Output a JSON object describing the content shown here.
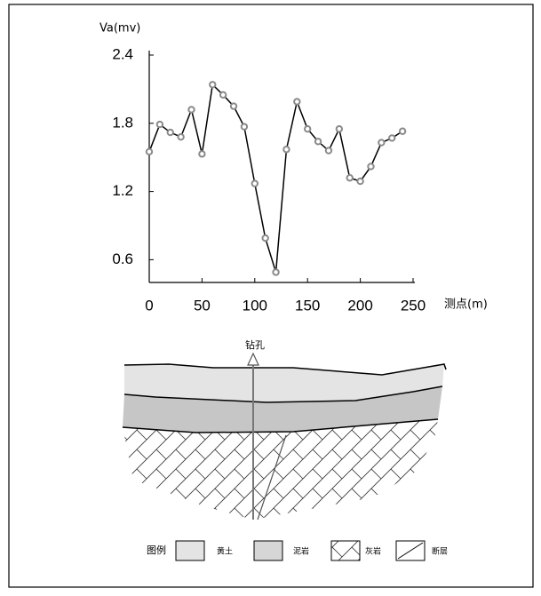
{
  "chart_data": {
    "type": "line",
    "y_label": "Va(mv)",
    "x_label": "测点(m)",
    "x": [
      0,
      10,
      20,
      30,
      40,
      50,
      60,
      70,
      80,
      90,
      100,
      110,
      120,
      130,
      140,
      150,
      160,
      170,
      180,
      190,
      200,
      210,
      220,
      230,
      240
    ],
    "values": [
      1.55,
      1.79,
      1.72,
      1.68,
      1.92,
      1.53,
      2.14,
      2.05,
      1.95,
      1.77,
      1.27,
      0.79,
      0.49,
      1.57,
      1.99,
      1.75,
      1.64,
      1.56,
      1.75,
      1.32,
      1.29,
      1.42,
      1.63,
      1.67,
      1.73
    ],
    "color": "#000000",
    "marker_color": "#8a8a8a",
    "xlim": [
      0,
      250
    ],
    "xticks": [
      0,
      50,
      100,
      150,
      200,
      250
    ],
    "ylim": [
      0.4,
      2.4
    ],
    "yticks": [
      0.6,
      1.2,
      1.8,
      2.4
    ]
  },
  "diagram": {
    "borehole_label": "钻孔",
    "legend": {
      "title": "图例",
      "items": [
        "黄土",
        "泥岩",
        "灰岩",
        "断层"
      ]
    }
  }
}
